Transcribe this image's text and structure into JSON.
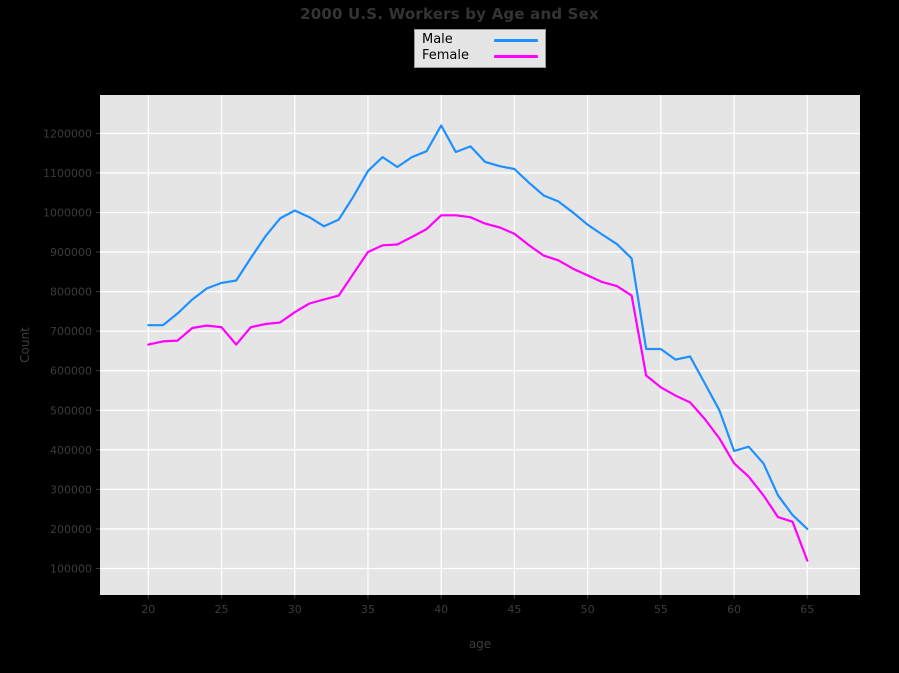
{
  "chart_data": {
    "type": "line",
    "title": "2000 U.S. Workers by Age and Sex",
    "xlabel": "age",
    "ylabel": "Count",
    "x": [
      20,
      21,
      22,
      23,
      24,
      25,
      26,
      27,
      28,
      29,
      30,
      31,
      32,
      33,
      34,
      35,
      36,
      37,
      38,
      39,
      40,
      41,
      42,
      43,
      44,
      45,
      46,
      47,
      48,
      49,
      50,
      51,
      52,
      53,
      54,
      55,
      56,
      57,
      58,
      59,
      60,
      61,
      62,
      63,
      64,
      65
    ],
    "series": [
      {
        "name": "Male",
        "color": "#1E90FF",
        "values": [
          715000,
          715000,
          745000,
          780000,
          808000,
          822000,
          828000,
          885000,
          940000,
          985000,
          1005000,
          988000,
          965000,
          982000,
          1040000,
          1105000,
          1140000,
          1115000,
          1140000,
          1155000,
          1220000,
          1153000,
          1167000,
          1128000,
          1117000,
          1110000,
          1075000,
          1043000,
          1028000,
          1000000,
          969000,
          944000,
          920000,
          884000,
          655000,
          655000,
          628000,
          636000,
          568000,
          500000,
          397000,
          408000,
          366000,
          285000,
          235000,
          200000
        ]
      },
      {
        "name": "Female",
        "color": "#FF00FF",
        "values": [
          666000,
          674000,
          676000,
          708000,
          714000,
          710000,
          666000,
          710000,
          718000,
          722000,
          748000,
          770000,
          780000,
          790000,
          845000,
          900000,
          917000,
          919000,
          938000,
          958000,
          993000,
          993000,
          988000,
          972000,
          962000,
          946000,
          917000,
          891000,
          879000,
          858000,
          841000,
          824000,
          814000,
          790000,
          588000,
          558000,
          537000,
          520000,
          478000,
          429000,
          366000,
          332000,
          285000,
          230000,
          218000,
          120000
        ]
      }
    ],
    "x_ticks": [
      20,
      25,
      30,
      35,
      40,
      45,
      50,
      55,
      60,
      65
    ],
    "y_ticks": [
      100000,
      200000,
      300000,
      400000,
      500000,
      600000,
      700000,
      800000,
      900000,
      1000000,
      1100000,
      1200000
    ],
    "xlim": [
      16.7,
      68.6
    ],
    "ylim": [
      33000,
      1297000
    ],
    "grid": true,
    "legend_position": "top-center",
    "panel_color": "#E5E5E5",
    "grid_color": "#FFFFFF",
    "background_color": "#000000",
    "text_color": "#3C3C3C"
  },
  "legend": {
    "items": [
      {
        "label": "Male"
      },
      {
        "label": "Female"
      }
    ]
  }
}
